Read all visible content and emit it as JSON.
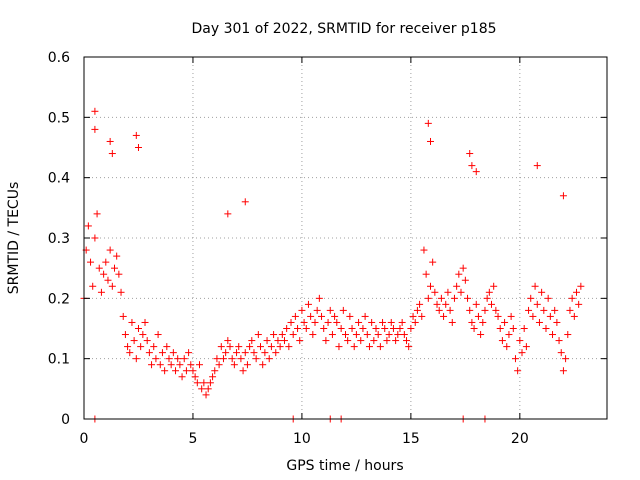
{
  "chart_data": {
    "type": "scatter",
    "title": "Day 301 of 2022, SRMTID for receiver p185",
    "xlabel": "GPS time / hours",
    "ylabel": "SRMTID / TECUs",
    "xlim": [
      0,
      24
    ],
    "ylim": [
      0,
      0.6
    ],
    "x_ticks": [
      0,
      5,
      10,
      15,
      20
    ],
    "x_tick_labels": [
      "0",
      "5",
      "10",
      "15",
      "20"
    ],
    "y_ticks": [
      0,
      0.1,
      0.2,
      0.3,
      0.4,
      0.5,
      0.6
    ],
    "y_tick_labels": [
      "0",
      "0.1",
      "0.2",
      "0.3",
      "0.4",
      "0.5",
      "0.6"
    ],
    "grid": true,
    "marker": "plus",
    "color": "#ff0000",
    "series": [
      {
        "name": "SRMTID",
        "x": [
          0.0,
          0.1,
          0.2,
          0.3,
          0.4,
          0.5,
          0.6,
          0.7,
          0.8,
          0.9,
          1.0,
          1.1,
          1.2,
          1.3,
          1.4,
          1.5,
          1.6,
          1.7,
          1.8,
          1.9,
          2.0,
          2.1,
          2.2,
          2.3,
          2.4,
          2.5,
          2.6,
          2.7,
          2.8,
          2.9,
          3.0,
          3.1,
          3.2,
          3.3,
          3.4,
          3.5,
          3.6,
          3.7,
          3.8,
          3.9,
          4.0,
          4.1,
          4.2,
          4.3,
          4.4,
          4.5,
          4.6,
          4.7,
          4.8,
          4.9,
          5.0,
          5.1,
          5.2,
          5.3,
          5.4,
          5.5,
          5.6,
          5.7,
          5.8,
          5.9,
          6.0,
          6.1,
          6.2,
          6.3,
          6.4,
          6.5,
          6.6,
          6.7,
          6.8,
          6.9,
          7.0,
          7.1,
          7.2,
          7.3,
          7.4,
          7.5,
          7.6,
          7.7,
          7.8,
          7.9,
          8.0,
          8.1,
          8.2,
          8.3,
          8.4,
          8.5,
          8.6,
          8.7,
          8.8,
          8.9,
          9.0,
          9.1,
          9.2,
          9.3,
          9.4,
          9.5,
          9.6,
          9.7,
          9.8,
          9.9,
          10.0,
          10.1,
          10.2,
          10.3,
          10.4,
          10.5,
          10.6,
          10.7,
          10.8,
          10.9,
          11.0,
          11.1,
          11.2,
          11.3,
          11.4,
          11.5,
          11.6,
          11.7,
          11.8,
          11.9,
          12.0,
          12.1,
          12.2,
          12.3,
          12.4,
          12.5,
          12.6,
          12.7,
          12.8,
          12.9,
          13.0,
          13.1,
          13.2,
          13.3,
          13.4,
          13.5,
          13.6,
          13.7,
          13.8,
          13.9,
          14.0,
          14.1,
          14.2,
          14.3,
          14.4,
          14.5,
          14.6,
          14.7,
          14.8,
          14.9,
          15.0,
          15.1,
          15.2,
          15.3,
          15.4,
          15.5,
          15.6,
          15.7,
          15.8,
          15.9,
          16.0,
          16.1,
          16.2,
          16.3,
          16.4,
          16.5,
          16.6,
          16.7,
          16.8,
          16.9,
          17.0,
          17.1,
          17.2,
          17.3,
          17.4,
          17.5,
          17.6,
          17.7,
          17.8,
          17.9,
          18.0,
          18.1,
          18.2,
          18.3,
          18.4,
          18.5,
          18.6,
          18.7,
          18.8,
          18.9,
          19.0,
          19.1,
          19.2,
          19.3,
          19.4,
          19.5,
          19.6,
          19.7,
          19.8,
          19.9,
          20.0,
          20.1,
          20.2,
          20.3,
          20.4,
          20.5,
          20.6,
          20.7,
          20.8,
          20.9,
          21.0,
          21.1,
          21.2,
          21.3,
          21.4,
          21.5,
          21.6,
          21.7,
          21.8,
          21.9,
          22.0,
          22.1,
          22.2,
          22.3,
          22.4,
          22.5,
          22.6,
          22.7,
          22.8,
          0.5,
          0.5,
          1.2,
          1.3,
          2.4,
          2.5,
          6.6,
          7.4,
          15.8,
          15.9,
          17.7,
          17.8,
          18.0,
          20.8,
          22.0,
          0.5,
          9.6,
          11.3,
          11.8,
          17.4,
          18.4
        ],
        "y": [
          0.2,
          0.28,
          0.32,
          0.26,
          0.22,
          0.3,
          0.34,
          0.25,
          0.21,
          0.24,
          0.26,
          0.23,
          0.28,
          0.22,
          0.25,
          0.27,
          0.24,
          0.21,
          0.17,
          0.14,
          0.12,
          0.11,
          0.16,
          0.13,
          0.1,
          0.15,
          0.12,
          0.14,
          0.16,
          0.13,
          0.11,
          0.09,
          0.12,
          0.1,
          0.14,
          0.09,
          0.11,
          0.08,
          0.12,
          0.1,
          0.09,
          0.11,
          0.08,
          0.1,
          0.09,
          0.07,
          0.1,
          0.08,
          0.11,
          0.09,
          0.08,
          0.07,
          0.06,
          0.09,
          0.05,
          0.06,
          0.04,
          0.05,
          0.06,
          0.07,
          0.08,
          0.1,
          0.09,
          0.12,
          0.1,
          0.11,
          0.13,
          0.12,
          0.1,
          0.09,
          0.11,
          0.12,
          0.1,
          0.08,
          0.11,
          0.09,
          0.12,
          0.13,
          0.11,
          0.1,
          0.14,
          0.12,
          0.09,
          0.11,
          0.13,
          0.1,
          0.12,
          0.14,
          0.11,
          0.13,
          0.12,
          0.14,
          0.13,
          0.15,
          0.12,
          0.16,
          0.14,
          0.17,
          0.15,
          0.13,
          0.18,
          0.16,
          0.15,
          0.19,
          0.17,
          0.14,
          0.16,
          0.18,
          0.2,
          0.17,
          0.15,
          0.13,
          0.16,
          0.18,
          0.14,
          0.17,
          0.16,
          0.12,
          0.15,
          0.18,
          0.14,
          0.13,
          0.17,
          0.15,
          0.12,
          0.14,
          0.16,
          0.13,
          0.15,
          0.17,
          0.14,
          0.12,
          0.16,
          0.13,
          0.15,
          0.14,
          0.12,
          0.16,
          0.15,
          0.13,
          0.14,
          0.16,
          0.15,
          0.13,
          0.14,
          0.15,
          0.16,
          0.14,
          0.13,
          0.12,
          0.15,
          0.17,
          0.16,
          0.18,
          0.19,
          0.17,
          0.28,
          0.24,
          0.2,
          0.22,
          0.26,
          0.21,
          0.19,
          0.18,
          0.2,
          0.17,
          0.19,
          0.21,
          0.18,
          0.16,
          0.2,
          0.22,
          0.24,
          0.21,
          0.25,
          0.23,
          0.2,
          0.18,
          0.16,
          0.15,
          0.19,
          0.17,
          0.14,
          0.16,
          0.18,
          0.2,
          0.21,
          0.19,
          0.22,
          0.18,
          0.17,
          0.15,
          0.13,
          0.16,
          0.12,
          0.14,
          0.17,
          0.15,
          0.1,
          0.08,
          0.13,
          0.11,
          0.15,
          0.12,
          0.18,
          0.2,
          0.17,
          0.22,
          0.19,
          0.16,
          0.21,
          0.18,
          0.15,
          0.2,
          0.17,
          0.14,
          0.18,
          0.16,
          0.13,
          0.11,
          0.08,
          0.1,
          0.14,
          0.18,
          0.2,
          0.17,
          0.21,
          0.19,
          0.22,
          0.51,
          0.48,
          0.46,
          0.44,
          0.47,
          0.45,
          0.34,
          0.36,
          0.49,
          0.46,
          0.44,
          0.42,
          0.41,
          0.42,
          0.37,
          0.0,
          0.0,
          0.0,
          0.0,
          0.0,
          0.0
        ]
      }
    ]
  }
}
